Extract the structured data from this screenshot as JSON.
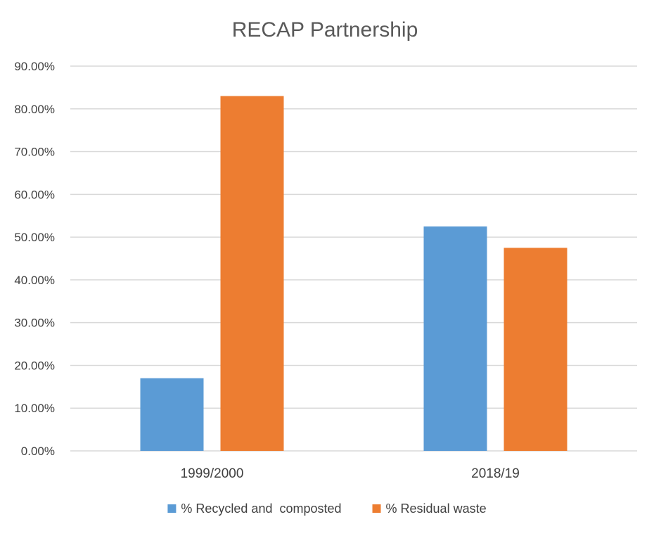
{
  "chart_data": {
    "type": "bar",
    "title": "RECAP Partnership",
    "xlabel": "",
    "ylabel": "",
    "categories": [
      "1999/2000",
      "2018/19"
    ],
    "series": [
      {
        "name": "% Recycled and  composted",
        "color": "#5b9bd5",
        "values": [
          17.0,
          52.5
        ]
      },
      {
        "name": "% Residual waste",
        "color": "#ed7d31",
        "values": [
          83.0,
          47.5
        ]
      }
    ],
    "ylim": [
      0,
      90
    ],
    "ytick_labels": [
      "0.00%",
      "10.00%",
      "20.00%",
      "30.00%",
      "40.00%",
      "50.00%",
      "60.00%",
      "70.00%",
      "80.00%",
      "90.00%"
    ],
    "grid": true,
    "legend_position": "bottom",
    "colors": {
      "gridline": "#d9d9d9",
      "text": "#404040",
      "title": "#595959"
    }
  }
}
